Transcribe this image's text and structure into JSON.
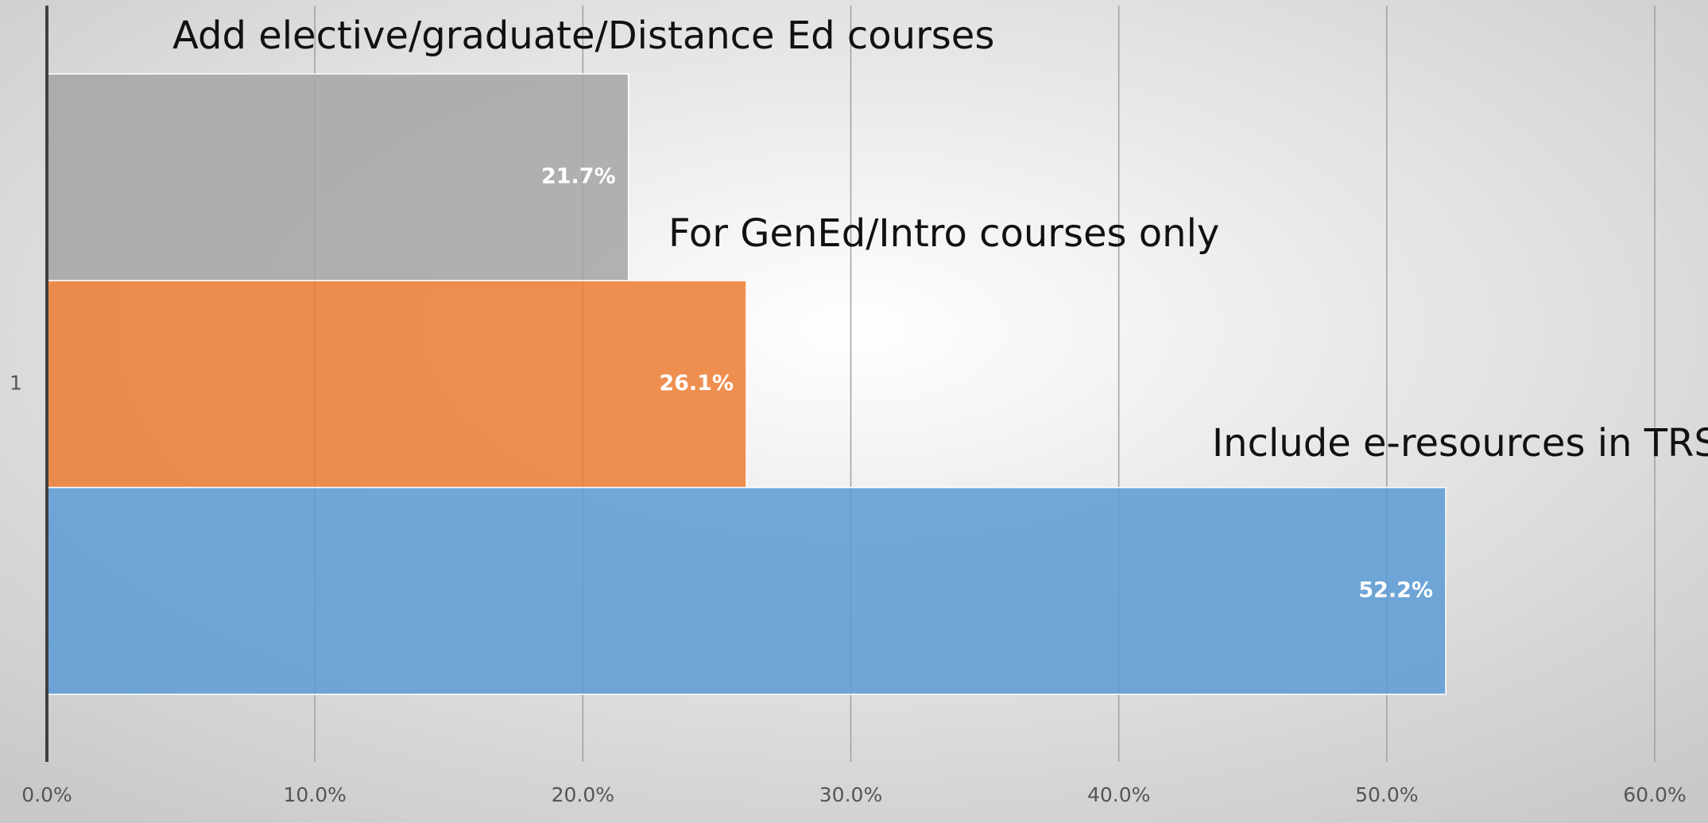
{
  "chart_data": {
    "type": "bar",
    "orientation": "horizontal",
    "categories": [
      "1"
    ],
    "series": [
      {
        "name": "Add elective/graduate/Distance Ed courses",
        "color": "#a5a5a5",
        "values": [
          21.7
        ],
        "value_labels": [
          "21.7%"
        ]
      },
      {
        "name": "For GenEd/Intro courses only",
        "color": "#ed7d31",
        "values": [
          26.1
        ],
        "value_labels": [
          "26.1%"
        ]
      },
      {
        "name": "Include e-resources in TRS",
        "color": "#5b9bd5",
        "values": [
          52.2
        ],
        "value_labels": [
          "52.2%"
        ]
      }
    ],
    "xlim": [
      0,
      60
    ],
    "xticks": [
      {
        "value": 0,
        "label": "0.0%"
      },
      {
        "value": 10,
        "label": "10.0%"
      },
      {
        "value": 20,
        "label": "20.0%"
      },
      {
        "value": 30,
        "label": "30.0%"
      },
      {
        "value": 40,
        "label": "40.0%"
      },
      {
        "value": 50,
        "label": "50.0%"
      },
      {
        "value": 60,
        "label": "60.0%"
      }
    ],
    "grid": true
  }
}
